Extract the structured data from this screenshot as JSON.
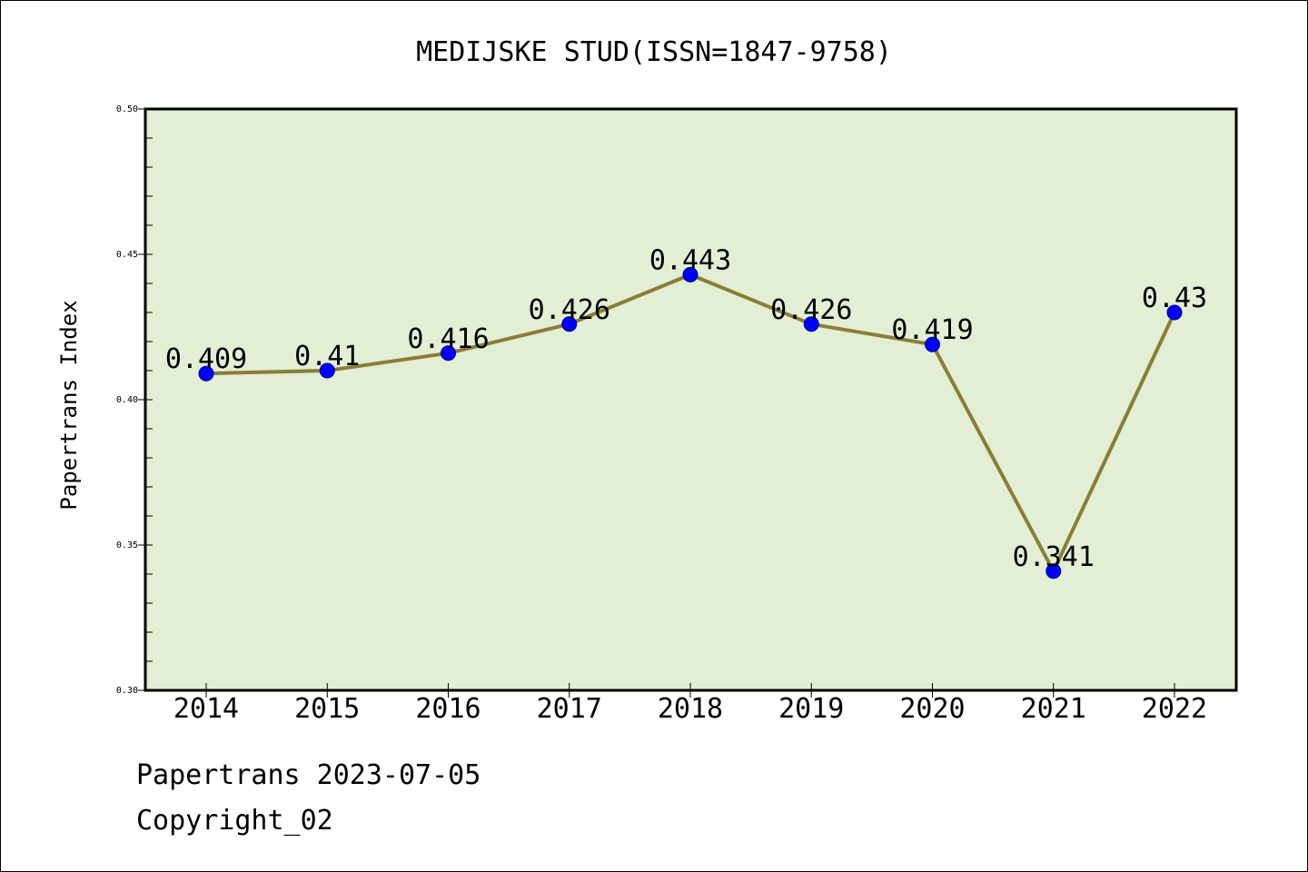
{
  "chart_data": {
    "type": "line",
    "title": "MEDIJSKE STUD(ISSN=1847-9758)",
    "xlabel": "",
    "ylabel": "Papertrans Index",
    "categories": [
      "2014",
      "2015",
      "2016",
      "2017",
      "2018",
      "2019",
      "2020",
      "2021",
      "2022"
    ],
    "series": [
      {
        "values": [
          0.409,
          0.41,
          0.416,
          0.426,
          0.443,
          0.426,
          0.419,
          0.341,
          0.43
        ],
        "labels": [
          "0.409",
          "0.41",
          "0.416",
          "0.426",
          "0.443",
          "0.426",
          "0.419",
          "0.341",
          "0.43"
        ]
      }
    ],
    "ylim": [
      0.3,
      0.5
    ],
    "yticks": [
      "0.30",
      "0.35",
      "0.40",
      "0.45",
      "0.50"
    ],
    "grid": false,
    "legend": "none"
  },
  "footer": {
    "source": "Papertrans 2023-07-05",
    "copyright": "Copyright_02"
  },
  "colors": {
    "plot_background": "#e2efd5",
    "line": "#8b7d35",
    "marker": "#0000ff",
    "axis": "#000000"
  }
}
